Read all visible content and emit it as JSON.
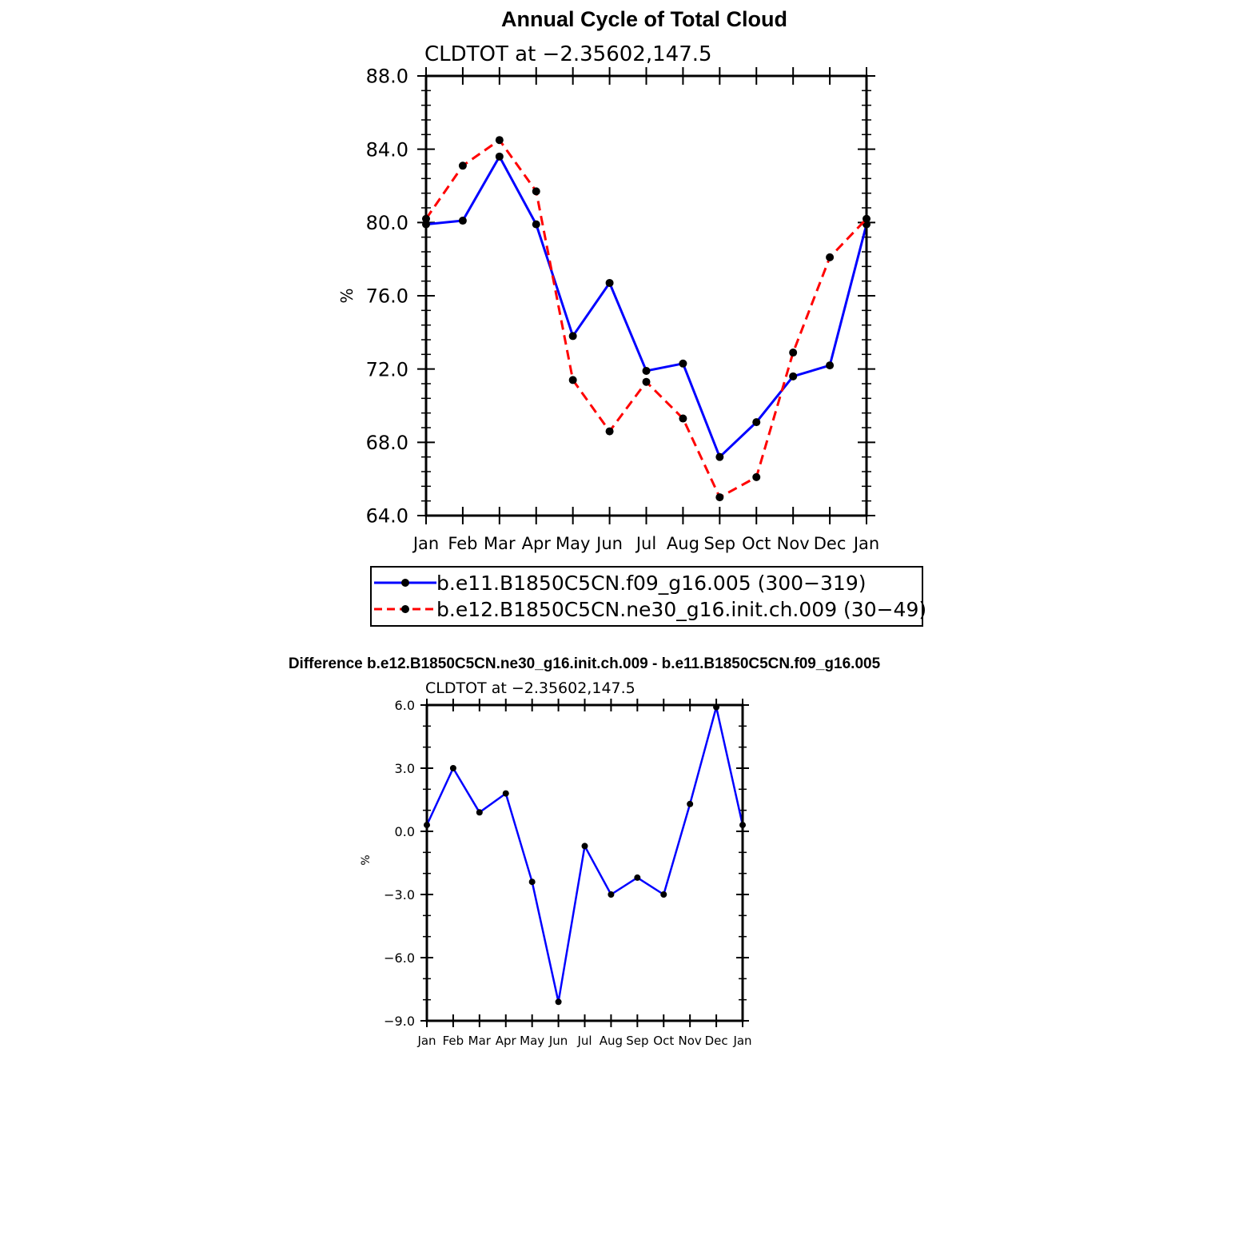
{
  "chart_data": [
    {
      "type": "line",
      "title": "Annual Cycle of Total Cloud",
      "subtitle": "CLDTOT at −2.35602,147.5",
      "xlabel": "",
      "ylabel": "%",
      "categories": [
        "Jan",
        "Feb",
        "Mar",
        "Apr",
        "May",
        "Jun",
        "Jul",
        "Aug",
        "Sep",
        "Oct",
        "Nov",
        "Dec",
        "Jan"
      ],
      "ylim": [
        64,
        88
      ],
      "ytick_labels": [
        "64.0",
        "68.0",
        "72.0",
        "76.0",
        "80.0",
        "84.0",
        "88.0"
      ],
      "grid": false,
      "legend_position": "bottom",
      "series": [
        {
          "name": "b.e11.B1850C5CN.f09_g16.005 (300−319)",
          "color": "#0000ff",
          "dash": "solid",
          "values": [
            79.9,
            80.1,
            83.6,
            79.9,
            73.8,
            76.7,
            71.9,
            72.3,
            67.2,
            69.1,
            71.6,
            72.2,
            79.9
          ]
        },
        {
          "name": "b.e12.B1850C5CN.ne30_g16.init.ch.009 (30−49)",
          "color": "#ff0000",
          "dash": "dashed",
          "values": [
            80.2,
            83.1,
            84.5,
            81.7,
            71.4,
            68.6,
            71.3,
            69.3,
            65.0,
            66.1,
            72.9,
            78.1,
            80.2
          ]
        }
      ]
    },
    {
      "type": "line",
      "title": "Difference b.e12.B1850C5CN.ne30_g16.init.ch.009 - b.e11.B1850C5CN.f09_g16.005",
      "subtitle": "CLDTOT at −2.35602,147.5",
      "xlabel": "",
      "ylabel": "%",
      "categories": [
        "Jan",
        "Feb",
        "Mar",
        "Apr",
        "May",
        "Jun",
        "Jul",
        "Aug",
        "Sep",
        "Oct",
        "Nov",
        "Dec",
        "Jan"
      ],
      "ylim": [
        -9,
        6
      ],
      "ytick_labels": [
        "−9.0",
        "−6.0",
        "−3.0",
        "0.0",
        "3.0",
        "6.0"
      ],
      "grid": false,
      "series": [
        {
          "name": "",
          "color": "#0000ff",
          "dash": "solid",
          "values": [
            0.3,
            3.0,
            0.9,
            1.8,
            -2.4,
            -8.1,
            -0.7,
            -3.0,
            -2.2,
            -3.0,
            1.3,
            5.9,
            0.3
          ]
        }
      ]
    }
  ]
}
